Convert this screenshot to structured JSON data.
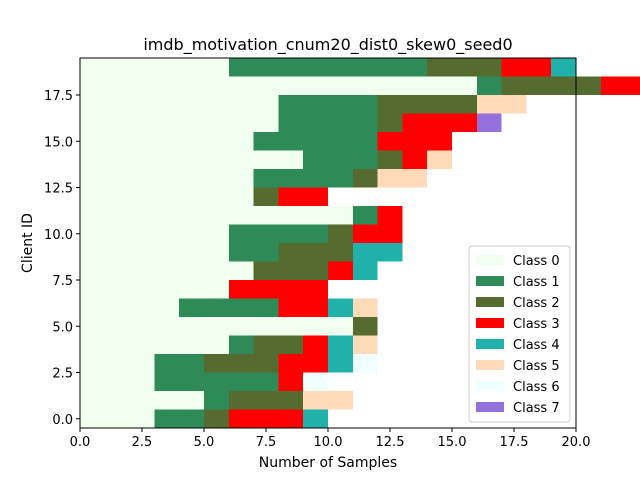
{
  "chart_data": {
    "type": "bar",
    "orientation": "horizontal-stacked",
    "title": "imdb_motivation_cnum20_dist0_skew0_seed0",
    "xlabel": "Number of Samples",
    "ylabel": "Client ID",
    "xlim": [
      0,
      20
    ],
    "ylim": [
      -0.5,
      19.5
    ],
    "xticks": [
      "0.0",
      "2.5",
      "5.0",
      "7.5",
      "10.0",
      "12.5",
      "15.0",
      "17.5",
      "20.0"
    ],
    "xtick_values": [
      0,
      2.5,
      5,
      7.5,
      10,
      12.5,
      15,
      17.5,
      20
    ],
    "yticks": [
      "0.0",
      "2.5",
      "5.0",
      "7.5",
      "10.0",
      "12.5",
      "15.0",
      "17.5"
    ],
    "ytick_values": [
      0,
      2.5,
      5,
      7.5,
      10,
      12.5,
      15,
      17.5
    ],
    "legend_position": "lower-right",
    "series": [
      {
        "name": "Class 0",
        "color": "#f0fff0",
        "values": [
          3,
          5,
          3,
          3,
          6,
          11,
          4,
          6,
          7,
          6,
          6,
          11,
          7,
          7,
          9,
          7,
          8,
          8,
          16,
          6
        ]
      },
      {
        "name": "Class 1",
        "color": "#2e8b57",
        "values": [
          2,
          1,
          5,
          2,
          1,
          0,
          4,
          0,
          0,
          2,
          4,
          1,
          0,
          4,
          3,
          5,
          4,
          4,
          1,
          8
        ]
      },
      {
        "name": "Class 2",
        "color": "#556b2f",
        "values": [
          1,
          3,
          0,
          3,
          2,
          1,
          0,
          0,
          3,
          3,
          1,
          0,
          1,
          1,
          1,
          0,
          1,
          4,
          4,
          3
        ]
      },
      {
        "name": "Class 3",
        "color": "#ff0000",
        "values": [
          3,
          0,
          1,
          2,
          1,
          0,
          2,
          4,
          1,
          0,
          2,
          1,
          2,
          0,
          1,
          3,
          3,
          0,
          2,
          2
        ]
      },
      {
        "name": "Class 4",
        "color": "#20b2aa",
        "values": [
          1,
          0,
          0,
          1,
          1,
          0,
          1,
          0,
          1,
          2,
          0,
          0,
          0,
          0,
          0,
          0,
          0,
          0,
          1,
          1
        ]
      },
      {
        "name": "Class 5",
        "color": "#ffdab9",
        "values": [
          0,
          2,
          0,
          0,
          1,
          0,
          1,
          0,
          0,
          0,
          0,
          0,
          0,
          2,
          1,
          0,
          0,
          2,
          0,
          0
        ]
      },
      {
        "name": "Class 6",
        "color": "#f0ffff",
        "values": [
          0,
          0,
          1,
          1,
          0,
          0,
          0,
          0,
          0,
          0,
          0,
          0,
          0,
          0,
          0,
          0,
          0,
          0,
          0,
          0
        ]
      },
      {
        "name": "Class 7",
        "color": "#9370db",
        "values": [
          0,
          0,
          0,
          0,
          0,
          0,
          0,
          0,
          0,
          0,
          0,
          0,
          0,
          0,
          0,
          0,
          1,
          0,
          1,
          0
        ]
      }
    ],
    "categories": [
      0,
      1,
      2,
      3,
      4,
      5,
      6,
      7,
      8,
      9,
      10,
      11,
      12,
      13,
      14,
      15,
      16,
      17,
      18,
      19
    ]
  }
}
